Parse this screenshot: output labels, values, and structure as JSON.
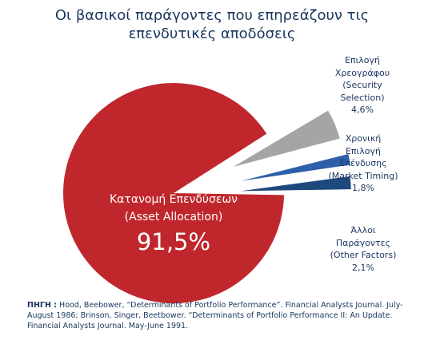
{
  "title": {
    "line1": "Οι βασικοί παράγοντες  που επηρεάζουν τις",
    "line2": "επενδυτικές αποδόσεις"
  },
  "colors": {
    "title": "#17365d",
    "asset_allocation": "#c0272d",
    "security_selection": "#a5a5a5",
    "market_timing": "#2e5faa",
    "other_factors": "#1f497d"
  },
  "labels": {
    "security": {
      "line1": "Επιλογή",
      "line2": "Χρεογράφου",
      "line3": "(Security",
      "line4": "Selection)",
      "value": "4,6%"
    },
    "timing": {
      "line1": "Χρονική",
      "line2": "Επιλογή",
      "line3": "Επένδυσης",
      "line4": "(Market Timing)",
      "value": "1,8%"
    },
    "other": {
      "line1": "Άλλοι",
      "line2": "Παράγοντες",
      "line3": "(Other Factors)",
      "value": "2,1%"
    },
    "allocation": {
      "line1": "Κατανομή Επενδύσεων",
      "line2": "(Asset Allocation)",
      "value": "91,5%"
    }
  },
  "source": {
    "label": "ΠΗΓΗ :",
    "text": "Hood, Beebower, “Determinants of Portfolio Performance”. Financial Analysts Journal. July-August 1986; Brinson, Singer, Beetbower. “Determinants of Portfolio Performance II: An Update. Financial Analysts Journal. May-June 1991."
  },
  "chart_data": {
    "type": "pie",
    "slices": [
      {
        "name": "Κατανομή Επενδύσεων (Asset Allocation)",
        "value": 91.5,
        "color": "#c0272d"
      },
      {
        "name": "Επιλογή Χρεογράφου (Security Selection)",
        "value": 4.6,
        "color": "#a5a5a5"
      },
      {
        "name": "Χρονική Επιλογή Επένδυσης (Market Timing)",
        "value": 1.8,
        "color": "#2e5faa"
      },
      {
        "name": "Άλλοι Παράγοντες (Other Factors)",
        "value": 2.1,
        "color": "#1f497d"
      }
    ],
    "exploded": [
      "Επιλογή Χρεογράφου (Security Selection)",
      "Χρονική Επιλογή Επένδυσης (Market Timing)",
      "Άλλοι Παράγοντες (Other Factors)"
    ],
    "legend": "none",
    "data_labels": "outside-right"
  }
}
